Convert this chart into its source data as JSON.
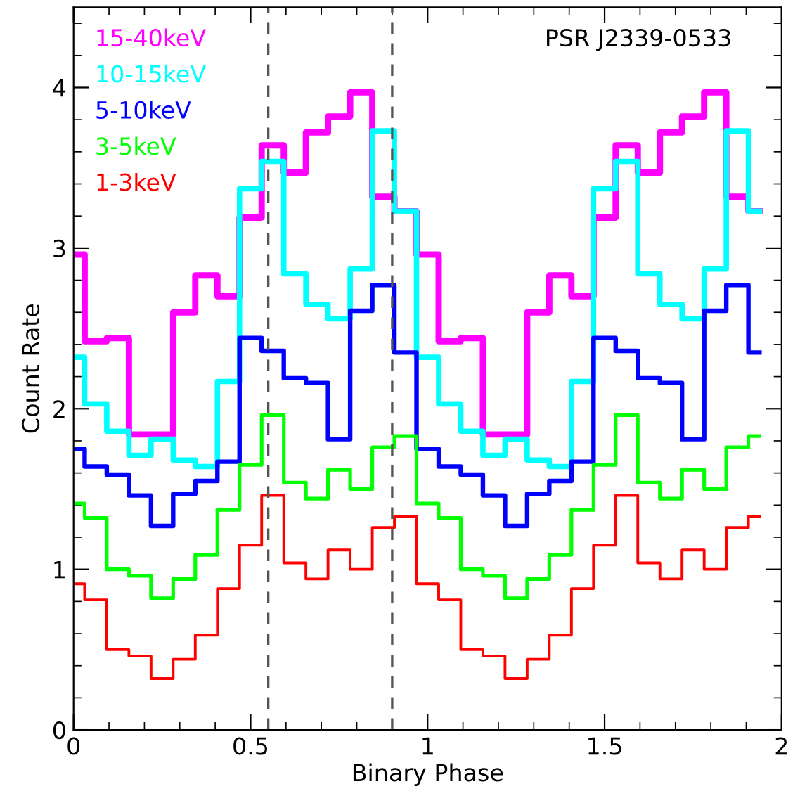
{
  "chart_data": {
    "type": "step",
    "xlabel": "Binary Phase",
    "ylabel": "Count Rate",
    "annotations": [
      "PSR J2339-0533"
    ],
    "x": [
      0,
      0.0625,
      0.125,
      0.1875,
      0.25,
      0.3125,
      0.375,
      0.4375,
      0.5,
      0.5625,
      0.625,
      0.6875,
      0.75,
      0.8125,
      0.875,
      0.9375,
      1,
      1.0625,
      1.125,
      1.1875,
      1.25,
      1.3125,
      1.375,
      1.4375,
      1.5,
      1.5625,
      1.625,
      1.6875,
      1.75,
      1.8125,
      1.875,
      1.9375
    ],
    "series": [
      {
        "name": "15-40keV",
        "color": "#ff00ff",
        "values": [
          2.96,
          2.42,
          2.44,
          1.84,
          1.84,
          2.6,
          2.83,
          2.7,
          3.19,
          3.64,
          3.47,
          3.72,
          3.82,
          3.97,
          3.32,
          3.23,
          2.96,
          2.42,
          2.44,
          1.84,
          1.84,
          2.6,
          2.83,
          2.7,
          3.19,
          3.64,
          3.47,
          3.72,
          3.82,
          3.97,
          3.32,
          3.23
        ]
      },
      {
        "name": "10-15keV",
        "color": "#00ffff",
        "values": [
          2.32,
          2.03,
          1.86,
          1.71,
          1.81,
          1.68,
          1.64,
          2.17,
          3.37,
          3.54,
          2.84,
          2.65,
          2.56,
          2.87,
          3.73,
          3.23,
          2.32,
          2.03,
          1.86,
          1.71,
          1.81,
          1.68,
          1.64,
          2.17,
          3.37,
          3.54,
          2.84,
          2.65,
          2.56,
          2.87,
          3.73,
          3.23
        ]
      },
      {
        "name": "5-10keV",
        "color": "#0000ff",
        "values": [
          1.75,
          1.64,
          1.59,
          1.46,
          1.27,
          1.47,
          1.55,
          1.67,
          2.44,
          2.36,
          2.19,
          2.16,
          1.81,
          2.61,
          2.77,
          2.35,
          1.75,
          1.64,
          1.59,
          1.46,
          1.27,
          1.47,
          1.55,
          1.67,
          2.44,
          2.36,
          2.19,
          2.16,
          1.81,
          2.61,
          2.77,
          2.35
        ]
      },
      {
        "name": "3-5keV",
        "color": "#00ff00",
        "values": [
          1.41,
          1.32,
          1.0,
          0.96,
          0.82,
          0.94,
          1.09,
          1.37,
          1.65,
          1.96,
          1.54,
          1.44,
          1.62,
          1.5,
          1.76,
          1.83,
          1.41,
          1.32,
          1.0,
          0.96,
          0.82,
          0.94,
          1.09,
          1.37,
          1.65,
          1.96,
          1.54,
          1.44,
          1.62,
          1.5,
          1.76,
          1.83
        ]
      },
      {
        "name": "1-3keV",
        "color": "#ff0000",
        "values": [
          0.91,
          0.81,
          0.5,
          0.46,
          0.32,
          0.44,
          0.59,
          0.88,
          1.15,
          1.46,
          1.04,
          0.94,
          1.12,
          1.0,
          1.26,
          1.33,
          0.91,
          0.81,
          0.5,
          0.46,
          0.32,
          0.44,
          0.59,
          0.88,
          1.15,
          1.46,
          1.04,
          0.94,
          1.12,
          1.0,
          1.26,
          1.33
        ]
      }
    ],
    "xlim": [
      0,
      2
    ],
    "xticks": [
      0,
      0.5,
      1,
      1.5,
      2
    ],
    "ylim": [
      0,
      4.5
    ],
    "yticks": [
      0,
      1,
      2,
      3,
      4
    ],
    "ref_lines": [
      {
        "axis": "x",
        "value": 0.55,
        "color": "#555555",
        "line_style": "dashed"
      },
      {
        "axis": "x",
        "value": 0.9,
        "color": "#555555",
        "line_style": "dashed"
      }
    ],
    "legend": "top left",
    "grid": false
  }
}
